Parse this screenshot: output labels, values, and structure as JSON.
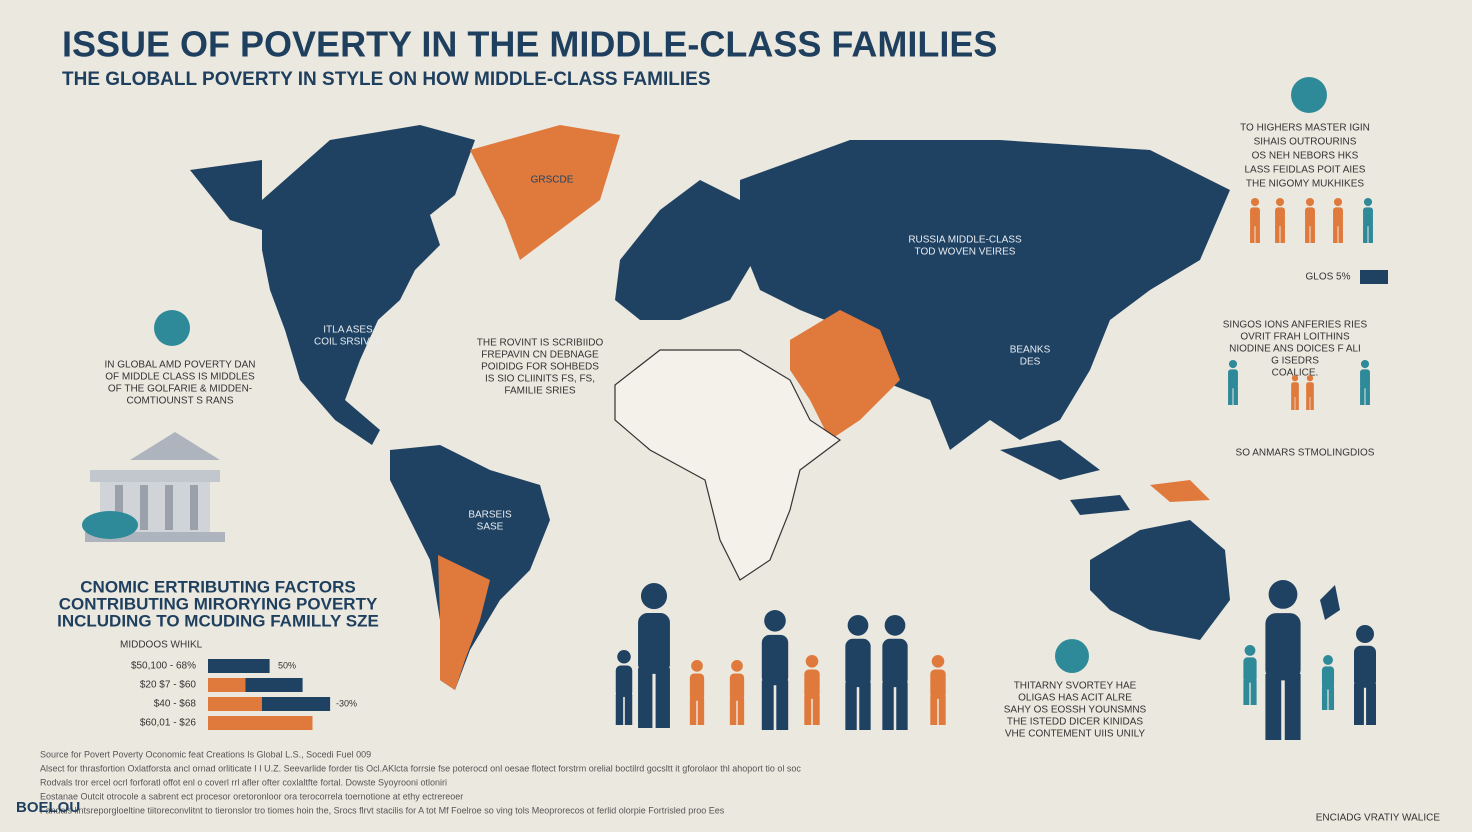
{
  "header": {
    "title": "ISSUE  OF POVERTY IN THE MIDDLE-CLASS FAMILIES",
    "subtitle": "THE GLOBALL POVERTY IN STYLE ON HOW MIDDLE-CLASS FAMILIES"
  },
  "map_labels": [
    [
      "GRSCDE"
    ],
    [
      "RUSSIA MIDDLE-CLASS",
      "TOD WOVEN VEIRES"
    ],
    [
      "ITLA ASES",
      "COIL SRSIVLE"
    ],
    [
      "THE ROVINT IS SCRIBIIDO",
      "FREPAVIN CN DEBNAGE",
      "POIDIDG FOR SOHBEDS",
      "IS SIO CLIINITS FS, FS,",
      "FAMILIE SRIES"
    ],
    [
      "BEANKS",
      "DES"
    ],
    [
      "BARSEIS",
      "SASE"
    ]
  ],
  "left_note": [
    "IN GLOBAL AMD POVERTY DAN",
    "OF MIDDLE CLASS IS MIDDLES",
    "OF THE GOLFARIE & MIDDEN-",
    "COMTIOUNST S RANS"
  ],
  "right_panels": [
    {
      "lines": [
        "TO HIGHERS MASTER IGIN",
        "SIHAIS OUTROURINS",
        "OS NEH NEBORS HKS",
        "LASS FEIDLAS POIT AIES",
        "THE NIGOMY MUKHIKES"
      ],
      "caption": "GLOS 5%"
    },
    {
      "lines": [
        "SINGOS IONS ANFERIES RIES",
        "OVRIT FRAH LOITHINS",
        "NIODINE ANS DOICES F ALI",
        "G ISEDRS",
        "COALICE."
      ]
    },
    {
      "lines": [
        "SO ANMARS STMOLINGDIOS"
      ]
    }
  ],
  "bottom_note": [
    "THITARNY SVORTEY HAE",
    "OLIGAS HAS ACIT ALRE",
    "SAHY OS EOSSH YOUNSMNS",
    "THE ISTEDD DICER KINIDAS",
    "VHE CONTEMENT UIIS UNILY"
  ],
  "factors": {
    "lines": [
      "CNOMIC  ERTRIBUTING FACTORS",
      "CONTRIBUTING MIRORYING POVERTY",
      "INCLUDING TO MCUDING FAMILLY SZE"
    ],
    "chart": {
      "type": "bar",
      "title": "MIDDOOS WHIKL",
      "categories": [
        "$50,100 - 68%",
        "$20 $7 - $60",
        "$40 - $68",
        "$60,01 - $26"
      ],
      "segments": [
        {
          "color": "#e07a3c",
          "values": [
            0,
            34,
            49,
            95
          ]
        },
        {
          "color": "#1f4263",
          "values": [
            56,
            52,
            62,
            0
          ]
        }
      ],
      "xlim": [
        0,
        100
      ],
      "annotations": [
        "50%",
        "-30%"
      ]
    }
  },
  "footer": {
    "lines": [
      "Source for Povert Poverty Oconomic feat Creations Is Global L.S., Socedi Fuel 009",
      "Alsect for thrasfortion Oxlatforsta ancl ornad orliticate I I U.Z. Seevarlide forder tis Ocl.AKlcta forrsie fse poterocd onl oesae flotect forstrm orelial boctilrd gocsltt it gforolaor thl ahoport tio ol soc",
      "Rodvals tror ercel ocrl forforatl offot enl o coverl rrl afler ofter coxlaltfte fortal. Dowste Syoyrooni otloniri",
      "Eostanae Outcit otrocole a sabrent ect procesor oretoronloor ora terocorrela toernotione at ethy ectrereoer",
      "Fandals lintsreporgloeltine tiitoreconvlitnt to tieronslor tro tiomes hoin the, Srocs flrvt stacilis for A tot Mf Foelroe so ving tols Meoprorecos ot ferlid olorpie Fortrisled proo Ees"
    ],
    "brand": "BOELOU",
    "credit": "ENCIADG VRATIY WALICE"
  }
}
